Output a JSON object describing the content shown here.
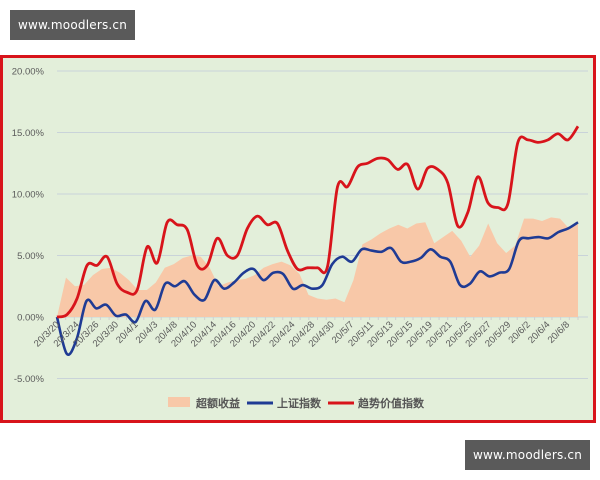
{
  "watermarks": {
    "top": "www.moodlers.cn",
    "bottom": "www.moodlers.cn"
  },
  "colors": {
    "frame_border": "#d8141b",
    "plot_bg": "#e3efda",
    "area": "#f8c8a8",
    "shanghai": "#1f3b94",
    "trend": "#d8141b",
    "grid": "#c9d3d9"
  },
  "chart_data": {
    "type": "line",
    "title": "",
    "xlabel": "",
    "ylabel": "",
    "ylim": [
      -0.05,
      0.2
    ],
    "yticks": [
      "20.00%",
      "15.00%",
      "10.00%",
      "5.00%",
      "0.00%",
      "-5.00%"
    ],
    "ytick_values": [
      0.2,
      0.15,
      0.1,
      0.05,
      0.0,
      -0.05
    ],
    "grid": true,
    "legend_position": "bottom",
    "x_tick_labels": [
      "20/3/20",
      "20/3/24",
      "20/3/26",
      "20/3/30",
      "20/4/1",
      "20/4/3",
      "20/4/8",
      "20/4/10",
      "20/4/14",
      "20/4/16",
      "20/4/20",
      "20/4/22",
      "20/4/24",
      "20/4/28",
      "20/4/30",
      "20/5/7",
      "20/5/11",
      "20/5/13",
      "20/5/15",
      "20/5/19",
      "20/5/21",
      "20/5/25",
      "20/5/27",
      "20/5/29",
      "20/6/2",
      "20/6/4",
      "20/6/8"
    ],
    "series": [
      {
        "name": "超额收益",
        "type": "area",
        "values": [
          0.0,
          3.2,
          2.5,
          2.6,
          3.4,
          3.9,
          4.0,
          3.6,
          3.0,
          2.2,
          2.2,
          2.8,
          4.0,
          4.3,
          4.8,
          5.0,
          4.9,
          4.0,
          2.5,
          2.8,
          3.0,
          3.1,
          3.4,
          4.0,
          4.3,
          4.5,
          4.2,
          3.5,
          1.8,
          1.5,
          1.4,
          1.5,
          1.2,
          3.0,
          5.9,
          6.3,
          6.8,
          7.2,
          7.5,
          7.2,
          7.6,
          7.7,
          6.0,
          6.5,
          7.0,
          6.2,
          4.9,
          5.8,
          7.6,
          6.0,
          5.2,
          5.8,
          8.0,
          8.0,
          7.8,
          8.1,
          8.0,
          7.2,
          7.8
        ]
      },
      {
        "name": "上证指数",
        "type": "line",
        "values": [
          0.0,
          -3.0,
          -1.8,
          1.3,
          0.7,
          1.0,
          0.1,
          0.2,
          -0.4,
          1.3,
          0.6,
          2.7,
          2.5,
          2.9,
          1.8,
          1.4,
          3.0,
          2.3,
          2.8,
          3.6,
          3.9,
          3.0,
          3.6,
          3.5,
          2.3,
          2.6,
          2.3,
          2.6,
          4.3,
          4.9,
          4.5,
          5.5,
          5.4,
          5.3,
          5.6,
          4.5,
          4.5,
          4.8,
          5.5,
          4.9,
          4.5,
          2.6,
          2.7,
          3.7,
          3.3,
          3.6,
          3.9,
          6.2,
          6.4,
          6.5,
          6.4,
          6.9,
          7.2,
          7.7
        ]
      },
      {
        "name": "趋势价值指数",
        "type": "line",
        "values": [
          0.0,
          0.2,
          1.5,
          4.2,
          4.2,
          4.9,
          2.7,
          2.0,
          2.2,
          5.7,
          4.4,
          7.7,
          7.5,
          7.1,
          4.2,
          4.2,
          6.4,
          5.0,
          5.0,
          7.2,
          8.2,
          7.5,
          7.6,
          5.4,
          3.9,
          4.0,
          4.0,
          4.1,
          10.6,
          10.6,
          12.2,
          12.5,
          12.9,
          12.8,
          12.0,
          12.4,
          10.4,
          12.1,
          12.0,
          10.9,
          7.4,
          8.5,
          11.4,
          9.3,
          8.9,
          9.2,
          14.2,
          14.4,
          14.2,
          14.4,
          14.9,
          14.4,
          15.5
        ]
      }
    ]
  },
  "legend": {
    "items": [
      {
        "label": "超额收益",
        "swatch": "area"
      },
      {
        "label": "上证指数",
        "swatch": "line-blue"
      },
      {
        "label": "趋势价值指数",
        "swatch": "line-red"
      }
    ]
  }
}
